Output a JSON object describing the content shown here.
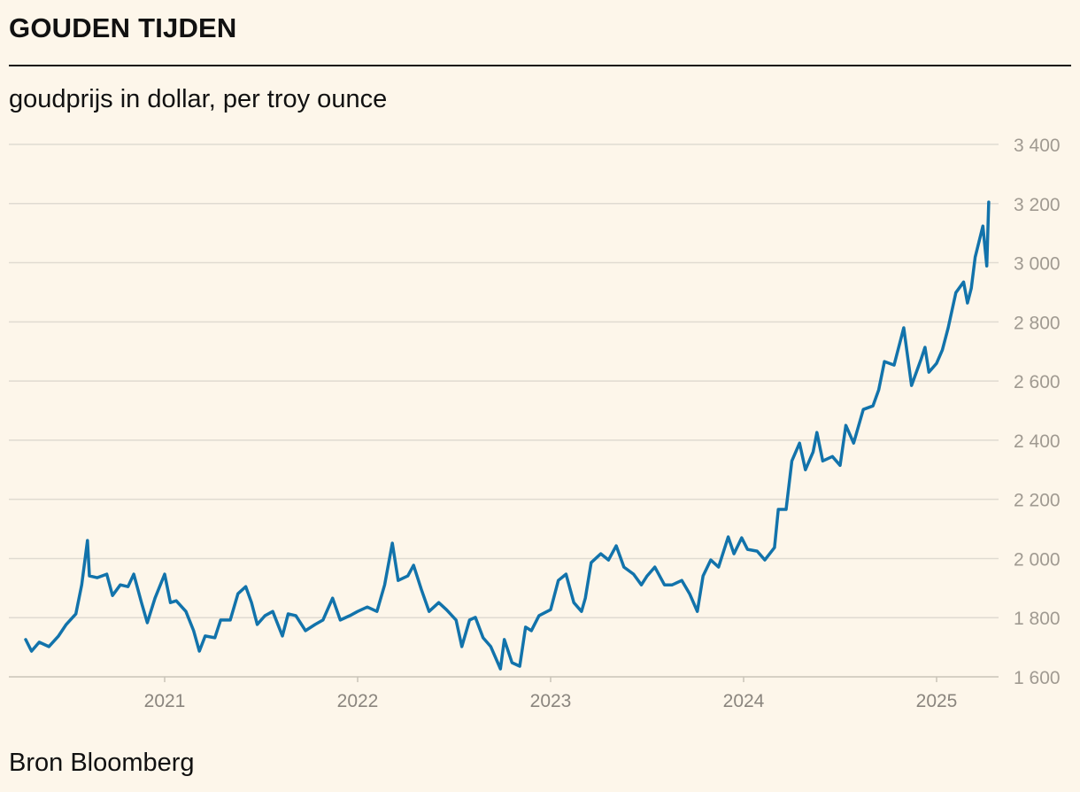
{
  "chart_data": {
    "type": "line",
    "title": "GOUDEN TIJDEN",
    "subtitle": "goudprijs in dollar, per troy ounce",
    "source": "Bron Bloomberg",
    "xlabel": "",
    "ylabel": "",
    "ylim": [
      1600,
      3400
    ],
    "yticks": [
      1600,
      1800,
      2000,
      2200,
      2400,
      2600,
      2800,
      3000,
      3200,
      3400
    ],
    "ytick_labels": [
      "1 600",
      "1 800",
      "2 000",
      "2 200",
      "2 400",
      "2 600",
      "2 800",
      "3 000",
      "3 200",
      "3 400"
    ],
    "xticks": [
      2021,
      2022,
      2023,
      2024,
      2025
    ],
    "xtick_labels": [
      "2021",
      "2022",
      "2023",
      "2024",
      "2025"
    ],
    "grid": true,
    "line_color": "#1273ab",
    "series": [
      {
        "name": "goudprijs",
        "x": [
          2020.28,
          2020.31,
          2020.35,
          2020.4,
          2020.45,
          2020.49,
          2020.54,
          2020.57,
          2020.6,
          2020.61,
          2020.65,
          2020.7,
          2020.73,
          2020.77,
          2020.81,
          2020.84,
          2020.88,
          2020.91,
          2020.95,
          2021.0,
          2021.03,
          2021.06,
          2021.11,
          2021.15,
          2021.18,
          2021.21,
          2021.26,
          2021.29,
          2021.34,
          2021.38,
          2021.42,
          2021.45,
          2021.48,
          2021.52,
          2021.56,
          2021.61,
          2021.64,
          2021.68,
          2021.73,
          2021.78,
          2021.82,
          2021.87,
          2021.91,
          2021.96,
          2022.0,
          2022.05,
          2022.1,
          2022.14,
          2022.18,
          2022.21,
          2022.26,
          2022.29,
          2022.33,
          2022.37,
          2022.42,
          2022.46,
          2022.51,
          2022.54,
          2022.58,
          2022.61,
          2022.65,
          2022.69,
          2022.74,
          2022.76,
          2022.8,
          2022.84,
          2022.87,
          2022.9,
          2022.94,
          2023.0,
          2023.04,
          2023.08,
          2023.12,
          2023.16,
          2023.18,
          2023.21,
          2023.26,
          2023.3,
          2023.34,
          2023.38,
          2023.43,
          2023.47,
          2023.5,
          2023.54,
          2023.59,
          2023.63,
          2023.68,
          2023.72,
          2023.76,
          2023.79,
          2023.83,
          2023.87,
          2023.92,
          2023.95,
          2023.99,
          2024.02,
          2024.07,
          2024.11,
          2024.16,
          2024.18,
          2024.22,
          2024.25,
          2024.29,
          2024.32,
          2024.36,
          2024.38,
          2024.41,
          2024.46,
          2024.5,
          2024.53,
          2024.57,
          2024.62,
          2024.67,
          2024.7,
          2024.73,
          2024.78,
          2024.83,
          2024.87,
          2024.92,
          2024.94,
          2024.96,
          2025.0,
          2025.03,
          2025.06,
          2025.1,
          2025.14,
          2025.16,
          2025.18,
          2025.2,
          2025.24,
          2025.26,
          2025.27
        ],
        "values": [
          1726,
          1687,
          1717,
          1702,
          1738,
          1777,
          1813,
          1911,
          2061,
          1941,
          1935,
          1947,
          1875,
          1911,
          1905,
          1947,
          1851,
          1783,
          1866,
          1947,
          1851,
          1857,
          1821,
          1756,
          1687,
          1738,
          1732,
          1792,
          1792,
          1881,
          1905,
          1851,
          1777,
          1807,
          1821,
          1738,
          1813,
          1807,
          1756,
          1777,
          1792,
          1866,
          1792,
          1807,
          1821,
          1836,
          1821,
          1911,
          2052,
          1926,
          1941,
          1977,
          1896,
          1821,
          1851,
          1827,
          1792,
          1702,
          1792,
          1801,
          1732,
          1702,
          1627,
          1726,
          1648,
          1636,
          1768,
          1756,
          1807,
          1827,
          1926,
          1947,
          1851,
          1821,
          1866,
          1986,
          2016,
          1995,
          2043,
          1971,
          1947,
          1911,
          1941,
          1971,
          1911,
          1911,
          1926,
          1881,
          1821,
          1941,
          1995,
          1971,
          2073,
          2016,
          2070,
          2031,
          2025,
          1995,
          2037,
          2166,
          2166,
          2330,
          2390,
          2300,
          2360,
          2426,
          2330,
          2345,
          2315,
          2450,
          2390,
          2504,
          2516,
          2570,
          2666,
          2654,
          2780,
          2585,
          2675,
          2714,
          2630,
          2660,
          2705,
          2780,
          2899,
          2935,
          2864,
          2914,
          3019,
          3124,
          2989,
          3205
        ]
      }
    ]
  }
}
